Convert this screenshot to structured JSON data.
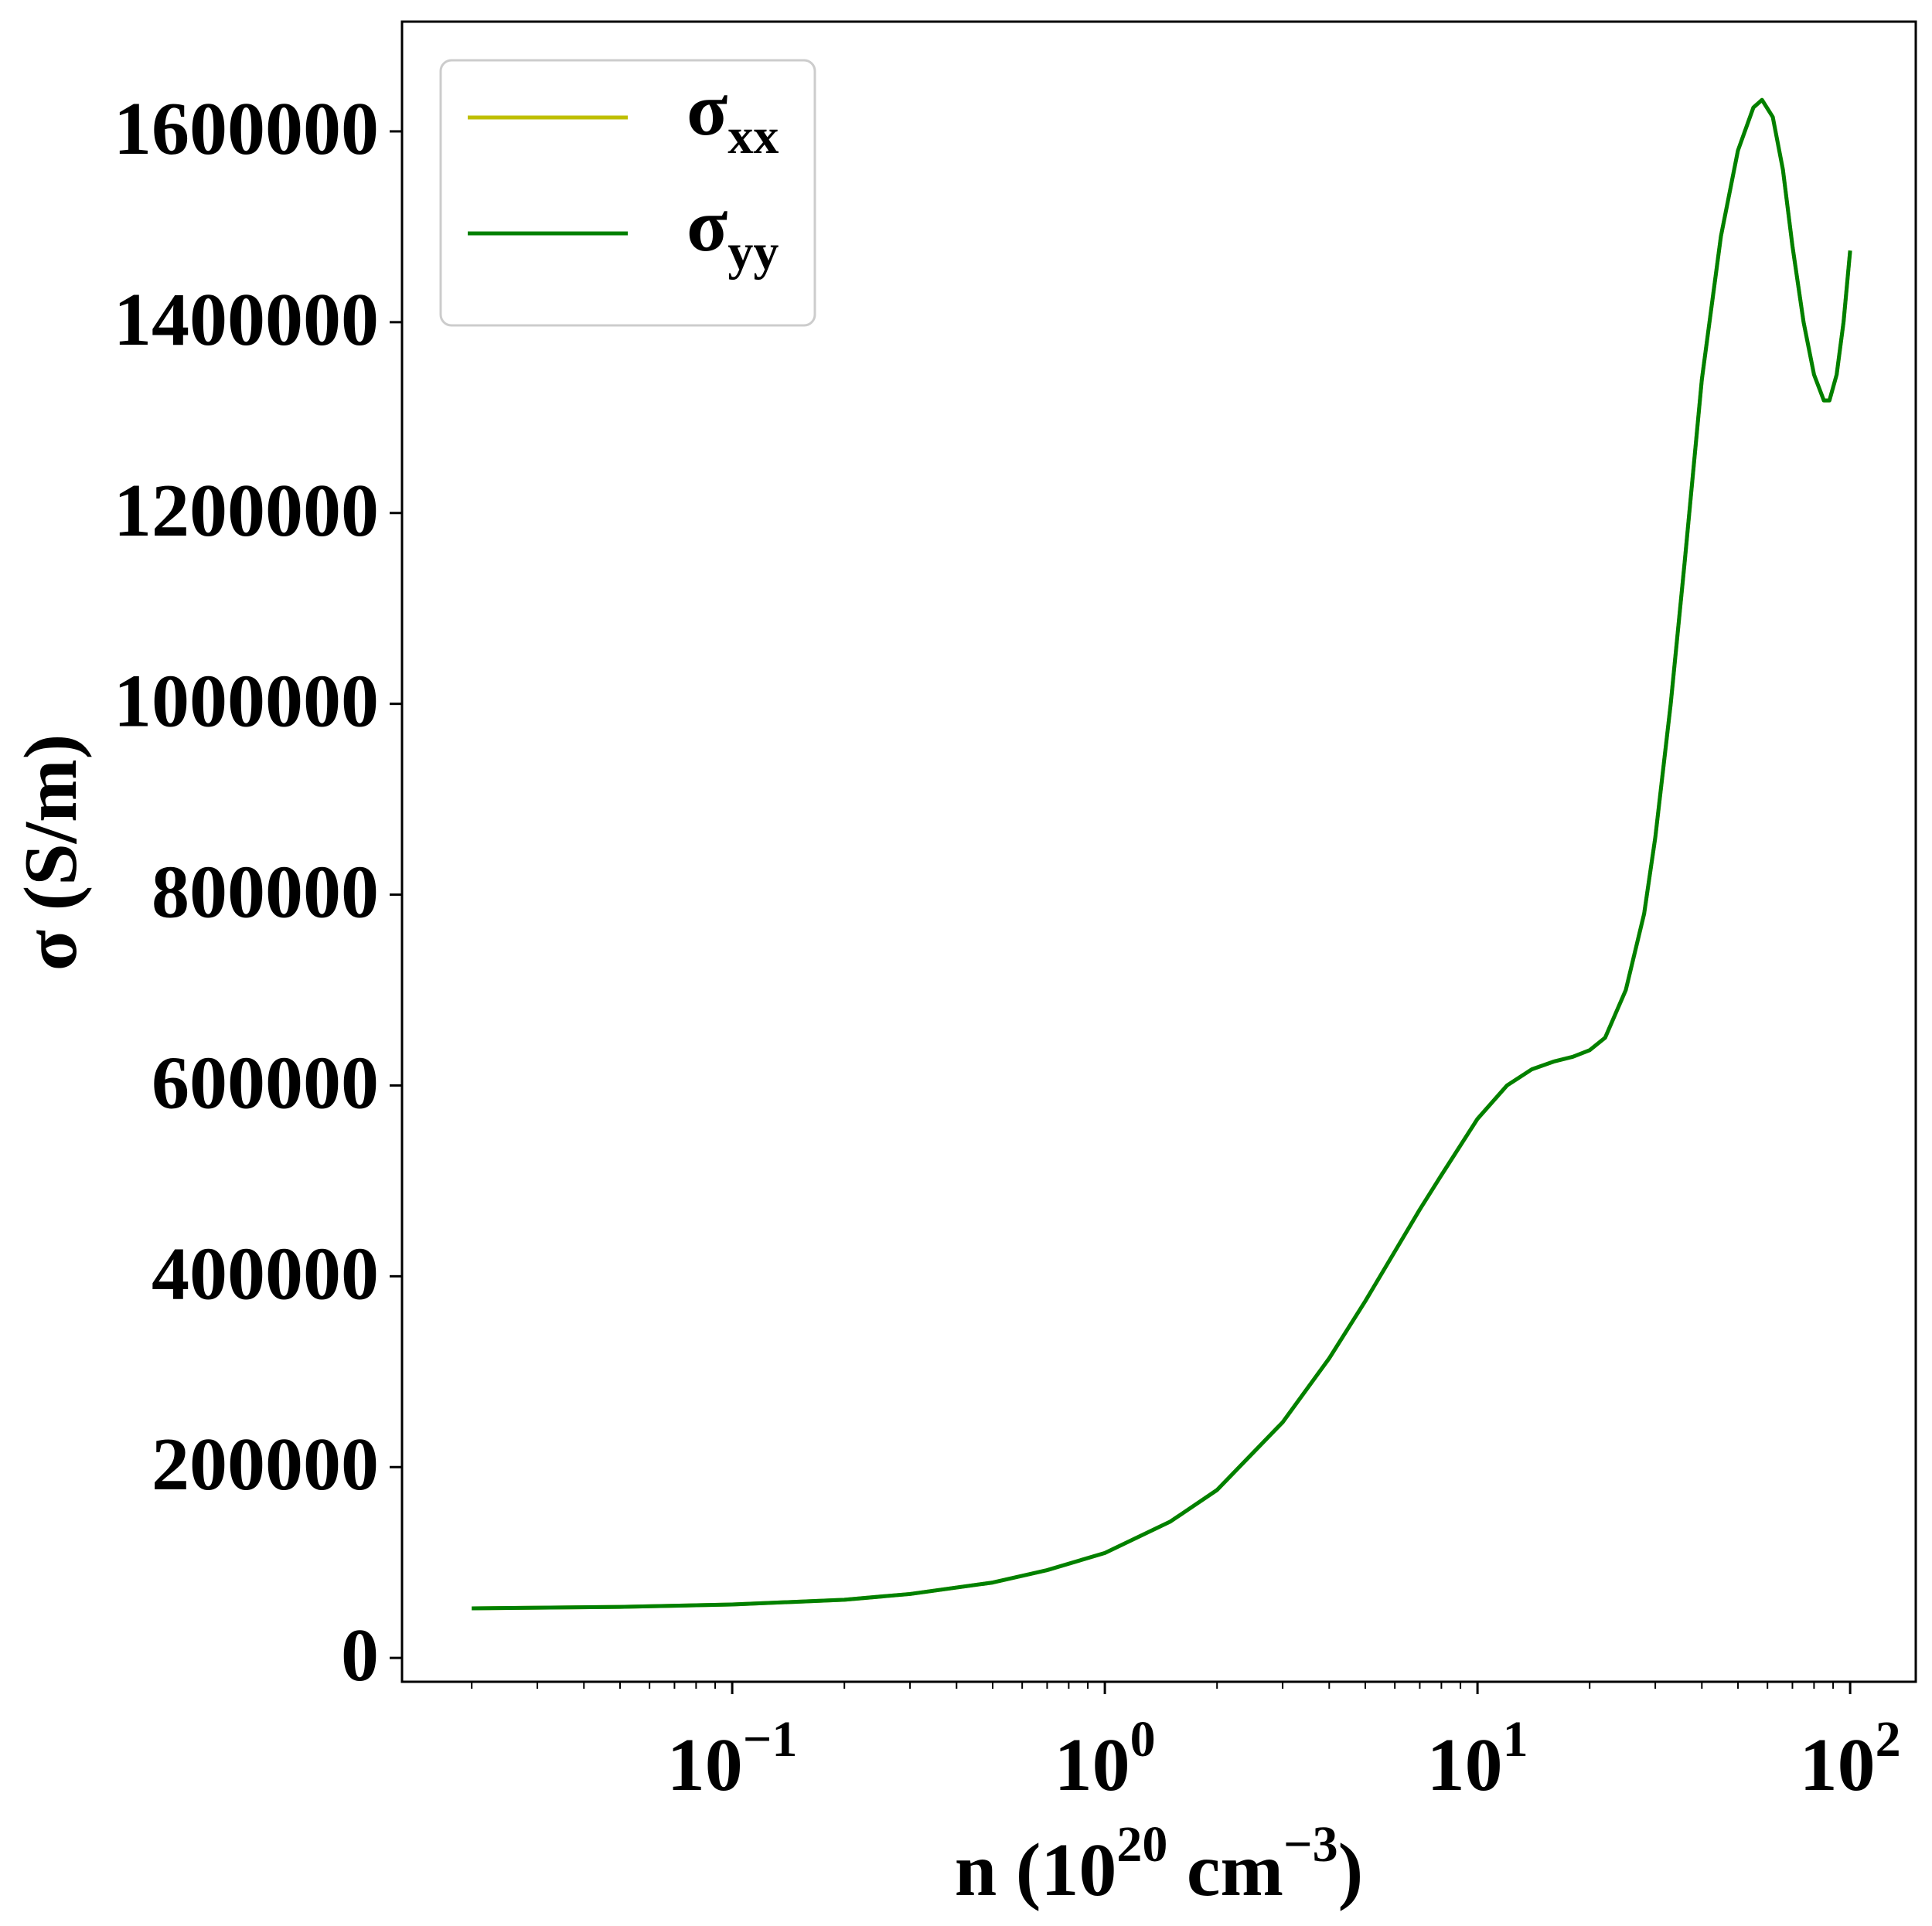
{
  "chart_data": {
    "type": "line",
    "title": "",
    "xlabel": {
      "base": "n (10",
      "sup1": "20",
      "mid": " cm",
      "sup2": "−3",
      "end": ")"
    },
    "ylabel": "σ (S/m)",
    "xscale": "log",
    "xlim": [
      0.013,
      150
    ],
    "ylim": [
      -25000,
      1715000
    ],
    "grid": false,
    "legend_position": "top-left",
    "yticks": [
      0,
      200000,
      400000,
      600000,
      800000,
      1000000,
      1200000,
      1400000,
      1600000
    ],
    "ytick_labels": [
      "0",
      "200000",
      "400000",
      "600000",
      "800000",
      "1000000",
      "1200000",
      "1400000",
      "1600000"
    ],
    "xticks": [
      0.1,
      1,
      10,
      100
    ],
    "xtick_labels": [
      {
        "base": "10",
        "exp": "−1"
      },
      {
        "base": "10",
        "exp": "0"
      },
      {
        "base": "10",
        "exp": "1"
      },
      {
        "base": "10",
        "exp": "2"
      }
    ],
    "series": [
      {
        "name": {
          "base": "σ",
          "sub": "xx"
        },
        "color": "#bfbf00",
        "x": [
          0.02,
          0.05,
          0.1,
          0.2,
          0.3,
          0.5,
          0.7,
          1.0,
          1.5,
          2.0,
          3.0,
          4.0,
          5.0,
          6.0,
          7.0,
          8.0,
          10.0,
          12.0,
          14.0,
          16.0,
          18.0,
          20.0,
          22.0,
          25.0,
          28.0,
          30.0,
          33.0,
          36.0,
          40.0,
          45.0,
          50.0,
          55.0,
          58.0,
          62.0,
          66.0,
          70.0,
          75.0,
          80.0,
          85.0,
          88.0,
          92.0,
          96.0,
          100.0
        ],
        "y": [
          52000,
          53500,
          56000,
          61000,
          67000,
          79000,
          92000,
          110000,
          143000,
          176000,
          247000,
          314000,
          374000,
          426000,
          470000,
          506000,
          565000,
          600000,
          617000,
          625000,
          630000,
          637000,
          650000,
          700000,
          780000,
          860000,
          1000000,
          1150000,
          1340000,
          1490000,
          1580000,
          1625000,
          1633000,
          1615000,
          1560000,
          1480000,
          1400000,
          1345000,
          1318000,
          1318000,
          1345000,
          1400000,
          1475000
        ]
      },
      {
        "name": {
          "base": "σ",
          "sub": "yy"
        },
        "color": "#008000",
        "x": [
          0.02,
          0.05,
          0.1,
          0.2,
          0.3,
          0.5,
          0.7,
          1.0,
          1.5,
          2.0,
          3.0,
          4.0,
          5.0,
          6.0,
          7.0,
          8.0,
          10.0,
          12.0,
          14.0,
          16.0,
          18.0,
          20.0,
          22.0,
          25.0,
          28.0,
          30.0,
          33.0,
          36.0,
          40.0,
          45.0,
          50.0,
          55.0,
          58.0,
          62.0,
          66.0,
          70.0,
          75.0,
          80.0,
          85.0,
          88.0,
          92.0,
          96.0,
          100.0
        ],
        "y": [
          52000,
          53500,
          56000,
          61000,
          67000,
          79000,
          92000,
          110000,
          143000,
          176000,
          247000,
          314000,
          374000,
          426000,
          470000,
          506000,
          565000,
          600000,
          617000,
          625000,
          630000,
          637000,
          650000,
          700000,
          780000,
          860000,
          1000000,
          1150000,
          1340000,
          1490000,
          1580000,
          1625000,
          1633000,
          1615000,
          1560000,
          1480000,
          1400000,
          1345000,
          1318000,
          1318000,
          1345000,
          1400000,
          1475000
        ]
      }
    ]
  }
}
